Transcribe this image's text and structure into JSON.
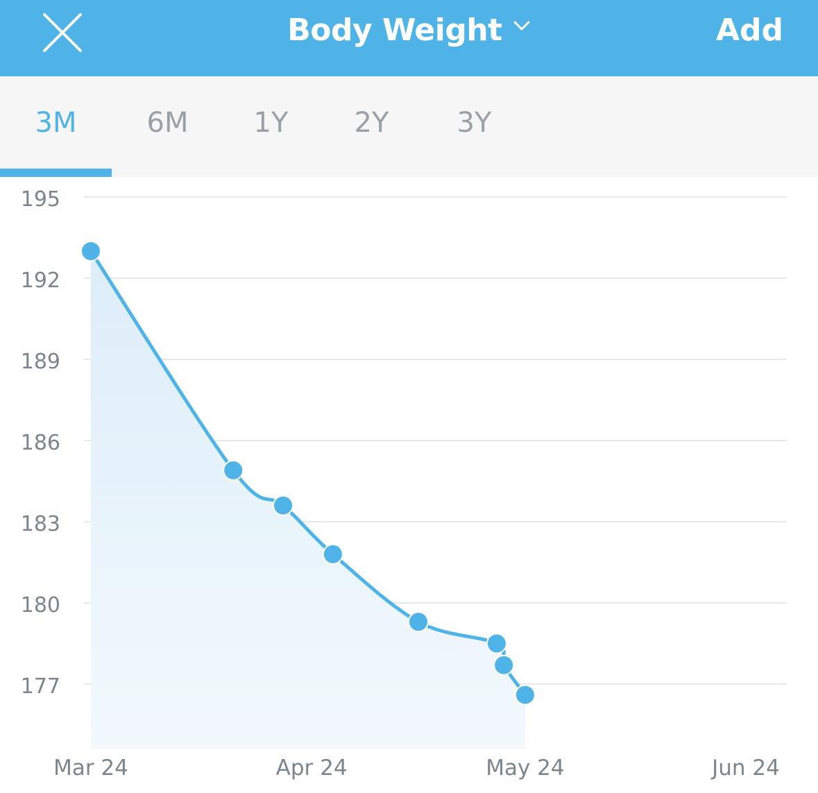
{
  "header": {
    "title": "Body Weight",
    "add_label": "Add",
    "close_icon": "close-icon",
    "chevron_icon": "chevron-down-icon",
    "background_color": "#4fb3e8"
  },
  "tabs": [
    {
      "label": "3M",
      "active": true
    },
    {
      "label": "6M",
      "active": false
    },
    {
      "label": "1Y",
      "active": false
    },
    {
      "label": "2Y",
      "active": false
    },
    {
      "label": "3Y",
      "active": false
    }
  ],
  "chart_data": {
    "type": "area",
    "title": "",
    "xlabel": "",
    "ylabel": "",
    "ylim": [
      174.5,
      195
    ],
    "yticks": [
      195,
      192,
      189,
      186,
      183,
      180,
      177
    ],
    "xlim": [
      "2024-03-24",
      "2024-06-24"
    ],
    "xticks": [
      {
        "date": "2024-03-24",
        "label": "Mar 24"
      },
      {
        "date": "2024-04-24",
        "label": "Apr 24"
      },
      {
        "date": "2024-05-24",
        "label": "May 24"
      },
      {
        "date": "2024-06-24",
        "label": "Jun 24"
      }
    ],
    "grid": true,
    "line_color": "#4fb3e8",
    "fill_color": "#d9edf9",
    "series": [
      {
        "points": [
          {
            "x": "2024-03-24",
            "y": 193.0
          },
          {
            "x": "2024-04-13",
            "y": 184.9
          },
          {
            "x": "2024-04-20",
            "y": 183.6
          },
          {
            "x": "2024-04-27",
            "y": 181.8
          },
          {
            "x": "2024-05-09",
            "y": 179.3
          },
          {
            "x": "2024-05-20",
            "y": 178.5
          },
          {
            "x": "2024-05-21",
            "y": 177.7
          },
          {
            "x": "2024-05-24",
            "y": 176.6
          }
        ]
      }
    ]
  }
}
